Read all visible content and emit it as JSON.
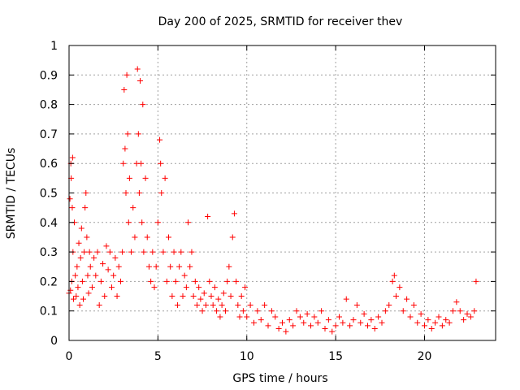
{
  "chart_data": {
    "type": "scatter",
    "title": "Day 200 of 2025, SRMTID for receiver thev",
    "xlabel": "GPS time / hours",
    "ylabel": "SRMTID / TECUs",
    "xlim": [
      0,
      24
    ],
    "ylim": [
      0,
      1
    ],
    "x_ticks": [
      0,
      5,
      10,
      15,
      20
    ],
    "x_tick_labels": [
      "0",
      "5",
      "10",
      "15",
      "20"
    ],
    "y_ticks": [
      0,
      0.1,
      0.2,
      0.3,
      0.4,
      0.5,
      0.6,
      0.7,
      0.8,
      0.9,
      1
    ],
    "y_tick_labels": [
      "0",
      "0.1",
      "0.2",
      "0.3",
      "0.4",
      "0.5",
      "0.6",
      "0.7",
      "0.8",
      "0.9",
      "1"
    ],
    "grid": true,
    "marker": "+",
    "marker_color": "#ff0000",
    "series": [
      {
        "name": "SRMTID",
        "points": [
          [
            0.0,
            0.16
          ],
          [
            0.05,
            0.48
          ],
          [
            0.08,
            0.17
          ],
          [
            0.1,
            0.6
          ],
          [
            0.12,
            0.55
          ],
          [
            0.15,
            0.2
          ],
          [
            0.18,
            0.45
          ],
          [
            0.2,
            0.62
          ],
          [
            0.22,
            0.3
          ],
          [
            0.25,
            0.14
          ],
          [
            0.3,
            0.4
          ],
          [
            0.35,
            0.22
          ],
          [
            0.4,
            0.15
          ],
          [
            0.45,
            0.25
          ],
          [
            0.5,
            0.18
          ],
          [
            0.55,
            0.33
          ],
          [
            0.6,
            0.12
          ],
          [
            0.65,
            0.28
          ],
          [
            0.7,
            0.38
          ],
          [
            0.75,
            0.2
          ],
          [
            0.8,
            0.14
          ],
          [
            0.85,
            0.3
          ],
          [
            0.9,
            0.45
          ],
          [
            0.95,
            0.5
          ],
          [
            1.0,
            0.35
          ],
          [
            1.05,
            0.22
          ],
          [
            1.1,
            0.16
          ],
          [
            1.15,
            0.3
          ],
          [
            1.2,
            0.25
          ],
          [
            1.3,
            0.18
          ],
          [
            1.4,
            0.28
          ],
          [
            1.5,
            0.22
          ],
          [
            1.6,
            0.3
          ],
          [
            1.7,
            0.12
          ],
          [
            1.8,
            0.2
          ],
          [
            1.9,
            0.26
          ],
          [
            2.0,
            0.15
          ],
          [
            2.1,
            0.32
          ],
          [
            2.2,
            0.24
          ],
          [
            2.3,
            0.3
          ],
          [
            2.4,
            0.18
          ],
          [
            2.5,
            0.22
          ],
          [
            2.6,
            0.28
          ],
          [
            2.7,
            0.15
          ],
          [
            2.8,
            0.25
          ],
          [
            2.9,
            0.2
          ],
          [
            3.0,
            0.3
          ],
          [
            3.05,
            0.6
          ],
          [
            3.1,
            0.85
          ],
          [
            3.15,
            0.65
          ],
          [
            3.2,
            0.5
          ],
          [
            3.25,
            0.9
          ],
          [
            3.3,
            0.7
          ],
          [
            3.35,
            0.4
          ],
          [
            3.4,
            0.55
          ],
          [
            3.5,
            0.3
          ],
          [
            3.6,
            0.45
          ],
          [
            3.7,
            0.35
          ],
          [
            3.8,
            0.6
          ],
          [
            3.85,
            0.92
          ],
          [
            3.9,
            0.7
          ],
          [
            3.95,
            0.5
          ],
          [
            4.0,
            0.88
          ],
          [
            4.05,
            0.6
          ],
          [
            4.1,
            0.4
          ],
          [
            4.15,
            0.8
          ],
          [
            4.2,
            0.3
          ],
          [
            4.3,
            0.55
          ],
          [
            4.4,
            0.35
          ],
          [
            4.5,
            0.25
          ],
          [
            4.6,
            0.2
          ],
          [
            4.7,
            0.3
          ],
          [
            4.8,
            0.18
          ],
          [
            4.9,
            0.25
          ],
          [
            5.0,
            0.4
          ],
          [
            5.1,
            0.68
          ],
          [
            5.15,
            0.6
          ],
          [
            5.2,
            0.5
          ],
          [
            5.3,
            0.3
          ],
          [
            5.4,
            0.55
          ],
          [
            5.5,
            0.2
          ],
          [
            5.6,
            0.35
          ],
          [
            5.7,
            0.25
          ],
          [
            5.8,
            0.15
          ],
          [
            5.9,
            0.3
          ],
          [
            6.0,
            0.2
          ],
          [
            6.1,
            0.12
          ],
          [
            6.2,
            0.25
          ],
          [
            6.3,
            0.3
          ],
          [
            6.4,
            0.15
          ],
          [
            6.5,
            0.22
          ],
          [
            6.6,
            0.18
          ],
          [
            6.7,
            0.4
          ],
          [
            6.8,
            0.25
          ],
          [
            6.9,
            0.3
          ],
          [
            7.0,
            0.15
          ],
          [
            7.1,
            0.2
          ],
          [
            7.2,
            0.12
          ],
          [
            7.3,
            0.18
          ],
          [
            7.4,
            0.14
          ],
          [
            7.5,
            0.1
          ],
          [
            7.6,
            0.16
          ],
          [
            7.7,
            0.12
          ],
          [
            7.8,
            0.42
          ],
          [
            7.9,
            0.2
          ],
          [
            8.0,
            0.15
          ],
          [
            8.1,
            0.12
          ],
          [
            8.2,
            0.18
          ],
          [
            8.3,
            0.1
          ],
          [
            8.4,
            0.14
          ],
          [
            8.5,
            0.08
          ],
          [
            8.6,
            0.12
          ],
          [
            8.7,
            0.16
          ],
          [
            8.8,
            0.1
          ],
          [
            8.9,
            0.2
          ],
          [
            9.0,
            0.25
          ],
          [
            9.1,
            0.15
          ],
          [
            9.2,
            0.35
          ],
          [
            9.3,
            0.43
          ],
          [
            9.4,
            0.2
          ],
          [
            9.5,
            0.12
          ],
          [
            9.6,
            0.08
          ],
          [
            9.7,
            0.15
          ],
          [
            9.8,
            0.1
          ],
          [
            9.9,
            0.18
          ],
          [
            10.0,
            0.08
          ],
          [
            10.2,
            0.12
          ],
          [
            10.4,
            0.06
          ],
          [
            10.6,
            0.1
          ],
          [
            10.8,
            0.07
          ],
          [
            11.0,
            0.12
          ],
          [
            11.2,
            0.05
          ],
          [
            11.4,
            0.1
          ],
          [
            11.6,
            0.08
          ],
          [
            11.8,
            0.04
          ],
          [
            12.0,
            0.06
          ],
          [
            12.2,
            0.03
          ],
          [
            12.4,
            0.07
          ],
          [
            12.6,
            0.05
          ],
          [
            12.8,
            0.1
          ],
          [
            13.0,
            0.08
          ],
          [
            13.2,
            0.06
          ],
          [
            13.4,
            0.09
          ],
          [
            13.6,
            0.05
          ],
          [
            13.8,
            0.08
          ],
          [
            14.0,
            0.06
          ],
          [
            14.2,
            0.1
          ],
          [
            14.4,
            0.04
          ],
          [
            14.6,
            0.07
          ],
          [
            14.8,
            0.03
          ],
          [
            15.0,
            0.05
          ],
          [
            15.2,
            0.08
          ],
          [
            15.4,
            0.06
          ],
          [
            15.6,
            0.14
          ],
          [
            15.8,
            0.05
          ],
          [
            16.0,
            0.07
          ],
          [
            16.2,
            0.12
          ],
          [
            16.4,
            0.06
          ],
          [
            16.6,
            0.09
          ],
          [
            16.8,
            0.05
          ],
          [
            17.0,
            0.07
          ],
          [
            17.2,
            0.04
          ],
          [
            17.4,
            0.08
          ],
          [
            17.6,
            0.06
          ],
          [
            17.8,
            0.1
          ],
          [
            18.0,
            0.12
          ],
          [
            18.2,
            0.2
          ],
          [
            18.3,
            0.22
          ],
          [
            18.4,
            0.15
          ],
          [
            18.6,
            0.18
          ],
          [
            18.8,
            0.1
          ],
          [
            19.0,
            0.14
          ],
          [
            19.2,
            0.08
          ],
          [
            19.4,
            0.12
          ],
          [
            19.6,
            0.06
          ],
          [
            19.8,
            0.09
          ],
          [
            20.0,
            0.05
          ],
          [
            20.2,
            0.07
          ],
          [
            20.4,
            0.04
          ],
          [
            20.6,
            0.06
          ],
          [
            20.8,
            0.08
          ],
          [
            21.0,
            0.05
          ],
          [
            21.2,
            0.07
          ],
          [
            21.4,
            0.06
          ],
          [
            21.6,
            0.1
          ],
          [
            21.8,
            0.13
          ],
          [
            22.0,
            0.1
          ],
          [
            22.2,
            0.07
          ],
          [
            22.4,
            0.09
          ],
          [
            22.6,
            0.08
          ],
          [
            22.8,
            0.1
          ],
          [
            22.9,
            0.2
          ]
        ]
      }
    ]
  }
}
